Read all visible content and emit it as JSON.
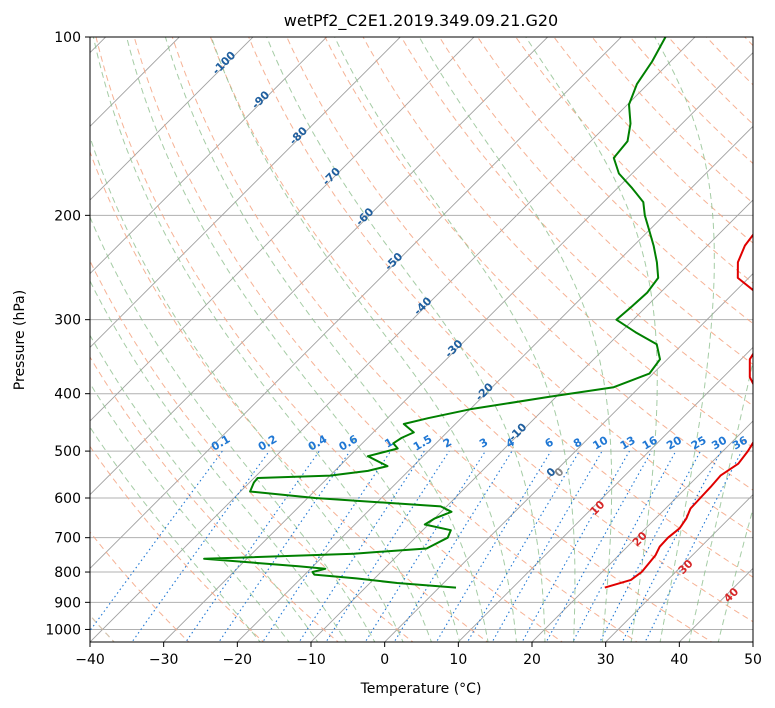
{
  "chart_data": {
    "type": "line",
    "title": "wetPf2_C2E1.2019.349.09.21.G20",
    "xlabel": "Temperature (°C)",
    "ylabel": "Pressure (hPa)",
    "xlim": [
      -40,
      50
    ],
    "ylim": [
      1050,
      100
    ],
    "yscale": "log",
    "grid": true,
    "x_ticks": [
      -40,
      -30,
      -20,
      -10,
      0,
      10,
      20,
      30,
      40,
      50
    ],
    "y_ticks": [
      100,
      200,
      300,
      400,
      500,
      600,
      700,
      800,
      900,
      1000
    ],
    "colors": {
      "temperature": "#e00000",
      "dewpoint": "#008000",
      "dry_adiabat": "#f4a582",
      "moist_adiabat": "#8fbf8f",
      "mixing_ratio": "#1f77d4",
      "isotherm": "#999999",
      "isotherm_label": "#1f5f9f",
      "skewT_label": "#d62728"
    },
    "series": [
      {
        "name": "",
        "kind": "temperature",
        "points": [
          [
            22.5,
            850
          ],
          [
            25.0,
            825
          ],
          [
            25.4,
            800
          ],
          [
            25.2,
            775
          ],
          [
            25.0,
            750
          ],
          [
            24.4,
            725
          ],
          [
            24.3,
            700
          ],
          [
            24.6,
            675
          ],
          [
            24.2,
            650
          ],
          [
            23.4,
            625
          ],
          [
            23.3,
            600
          ],
          [
            23.2,
            575
          ],
          [
            23.0,
            550
          ],
          [
            23.8,
            525
          ],
          [
            23.4,
            500
          ],
          [
            22.7,
            475
          ],
          [
            21.5,
            450
          ],
          [
            19.5,
            425
          ],
          [
            17.0,
            400
          ],
          [
            13.6,
            375
          ],
          [
            11.2,
            350
          ],
          [
            10.2,
            325
          ],
          [
            9.4,
            300
          ],
          [
            7.4,
            285
          ],
          [
            3.0,
            270
          ],
          [
            -1.5,
            255
          ],
          [
            -3.6,
            240
          ],
          [
            -4.9,
            225
          ],
          [
            -5.5,
            210
          ],
          [
            -6.2,
            200
          ],
          [
            -7.4,
            190
          ],
          [
            -9.0,
            180
          ],
          [
            -10.0,
            170
          ],
          [
            -11.5,
            160
          ],
          [
            -12.5,
            150
          ],
          [
            -14.0,
            140
          ],
          [
            -15.4,
            130
          ],
          [
            -16.0,
            120
          ],
          [
            -16.8,
            110
          ],
          [
            -17.5,
            100
          ]
        ]
      },
      {
        "name": "",
        "kind": "dewpoint",
        "points": [
          [
            2.3,
            850
          ],
          [
            -6.3,
            835
          ],
          [
            -12.5,
            820
          ],
          [
            -18.7,
            808
          ],
          [
            -19.3,
            800
          ],
          [
            -18.0,
            790
          ],
          [
            -22.0,
            782
          ],
          [
            -35.8,
            760
          ],
          [
            -16.2,
            745
          ],
          [
            -7.0,
            730
          ],
          [
            -5.6,
            700
          ],
          [
            -6.2,
            680
          ],
          [
            -10.5,
            665
          ],
          [
            -10.0,
            650
          ],
          [
            -8.6,
            633
          ],
          [
            -10.8,
            620
          ],
          [
            -29.0,
            600
          ],
          [
            -38.7,
            585
          ],
          [
            -39.4,
            565
          ],
          [
            -39.5,
            555
          ],
          [
            -30.0,
            550
          ],
          [
            -25.5,
            540
          ],
          [
            -23.5,
            530
          ],
          [
            -27.5,
            510
          ],
          [
            -24.5,
            495
          ],
          [
            -25.8,
            485
          ],
          [
            -25.4,
            475
          ],
          [
            -24.5,
            465
          ],
          [
            -27.0,
            450
          ],
          [
            -24.5,
            440
          ],
          [
            -20.0,
            425
          ],
          [
            -11.0,
            405
          ],
          [
            -3.5,
            390
          ],
          [
            -0.5,
            370
          ],
          [
            -1.0,
            350
          ],
          [
            -3.5,
            330
          ],
          [
            -8.0,
            315
          ],
          [
            -12.3,
            300
          ],
          [
            -12.0,
            285
          ],
          [
            -11.8,
            270
          ],
          [
            -12.3,
            255
          ],
          [
            -14.6,
            240
          ],
          [
            -17.3,
            225
          ],
          [
            -20.4,
            210
          ],
          [
            -22.6,
            200
          ],
          [
            -24.6,
            190
          ],
          [
            -28.0,
            180
          ],
          [
            -31.8,
            170
          ],
          [
            -34.6,
            160
          ],
          [
            -35.0,
            150
          ],
          [
            -37.0,
            140
          ],
          [
            -39.8,
            130
          ],
          [
            -41.5,
            120
          ],
          [
            -42.5,
            110
          ],
          [
            -44.0,
            100
          ]
        ]
      }
    ],
    "isotherm_labels": [
      -100,
      -90,
      -80,
      -70,
      -60,
      -50,
      -40,
      -30,
      -20,
      -10,
      0
    ],
    "mixing_ratio_labels": [
      0.1,
      0.2,
      0.4,
      0.6,
      1,
      1.5,
      2,
      3,
      4,
      6,
      8,
      10,
      13,
      16,
      20,
      25,
      30,
      36
    ],
    "skewT_labels": [
      0,
      10,
      20,
      30,
      40
    ]
  }
}
